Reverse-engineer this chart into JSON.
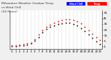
{
  "title": "Milwaukee Weather Outdoor Temp",
  "title2": "vs Wind Chill",
  "title3": "(24 Hours)",
  "title_fontsize": 3.2,
  "background_color": "#f0f0f0",
  "plot_bg_color": "#ffffff",
  "grid_color": "#888888",
  "ylim": [
    -10,
    60
  ],
  "xlim": [
    -0.5,
    23.5
  ],
  "yticks": [
    -5,
    5,
    15,
    25,
    35,
    45,
    55
  ],
  "ytick_labels": [
    "-5",
    "5",
    "15",
    "25",
    "35",
    "45",
    "55"
  ],
  "ytick_fontsize": 3.0,
  "xtick_fontsize": 2.8,
  "temp_color": "#ff0000",
  "wind_color": "#000000",
  "legend_temp_color": "#ff0000",
  "legend_wind_color": "#0000ff",
  "temp_x": [
    0,
    1,
    2,
    3,
    4,
    5,
    6,
    7,
    8,
    9,
    10,
    11,
    12,
    13,
    14,
    15,
    16,
    17,
    18,
    19,
    20,
    21,
    22,
    23
  ],
  "temp_y": [
    -3,
    -3,
    -2,
    -1,
    0,
    2,
    8,
    16,
    24,
    30,
    34,
    38,
    40,
    42,
    44,
    44,
    42,
    40,
    36,
    30,
    24,
    18,
    12,
    6
  ],
  "wind_x": [
    0,
    1,
    2,
    3,
    4,
    5,
    6,
    7,
    8,
    9,
    10,
    11,
    12,
    13,
    14,
    15,
    16,
    17,
    18,
    19,
    20,
    21,
    22,
    23
  ],
  "wind_y": [
    -5,
    -5,
    -4,
    -3,
    -2,
    0,
    5,
    12,
    20,
    26,
    30,
    33,
    35,
    36,
    38,
    37,
    35,
    32,
    28,
    22,
    16,
    10,
    4,
    -1
  ],
  "dot_size": 1.8,
  "xticks": [
    0,
    1,
    2,
    3,
    4,
    5,
    6,
    7,
    8,
    9,
    10,
    11,
    12,
    13,
    14,
    15,
    16,
    17,
    18,
    19,
    20,
    21,
    22,
    23
  ],
  "xtick_labels": [
    "0",
    "1",
    "2",
    "3",
    "4",
    "5",
    "6",
    "7",
    "8",
    "9",
    "10",
    "11",
    "12",
    "13",
    "14",
    "15",
    "16",
    "17",
    "18",
    "19",
    "20",
    "21",
    "22",
    "23"
  ]
}
